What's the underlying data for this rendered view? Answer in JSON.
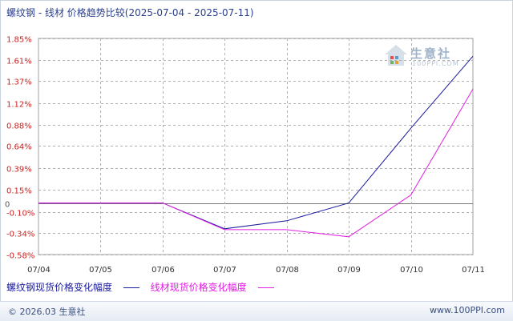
{
  "title": "螺纹钢 - 线材 价格趋势比较(2025-07-04 - 2025-07-11)",
  "footer": {
    "copyright": "© 2026.03 生意社",
    "site": "www.100PPI.com"
  },
  "watermark": {
    "name": "生意社",
    "url": "100PPI.COM"
  },
  "colors": {
    "series1": "#1a1aa0",
    "series2": "#e020e0",
    "grid": "#b0b0b0",
    "tick_label_positive": "#cc2222",
    "tick_label_negative": "#cc2222"
  },
  "chart_data": {
    "type": "line",
    "x": [
      "07/04",
      "07/05",
      "07/06",
      "07/07",
      "07/08",
      "07/09",
      "07/10",
      "07/11"
    ],
    "yticks": [
      {
        "value": 1.85,
        "label": "1.85%"
      },
      {
        "value": 1.61,
        "label": "1.61%"
      },
      {
        "value": 1.37,
        "label": "1.37%"
      },
      {
        "value": 1.12,
        "label": "1.12%"
      },
      {
        "value": 0.88,
        "label": "0.88%"
      },
      {
        "value": 0.64,
        "label": "0.64%"
      },
      {
        "value": 0.39,
        "label": "0.39%"
      },
      {
        "value": 0.15,
        "label": "0.15%"
      },
      {
        "value": 0.0,
        "label": "0"
      },
      {
        "value": -0.1,
        "label": "-0.10%"
      },
      {
        "value": -0.34,
        "label": "-0.34%"
      },
      {
        "value": -0.58,
        "label": "-0.58%"
      }
    ],
    "ylim": [
      -0.58,
      1.85
    ],
    "grid": true,
    "legend_position": "bottom-left",
    "series": [
      {
        "name": "螺纹钢现货价格变化幅度",
        "values": [
          0,
          0,
          0,
          -0.29,
          -0.2,
          0.0,
          0.84,
          1.65
        ]
      },
      {
        "name": "线材现货价格变化幅度",
        "values": [
          0,
          0,
          0,
          -0.3,
          -0.3,
          -0.38,
          0.09,
          1.28
        ]
      }
    ]
  }
}
